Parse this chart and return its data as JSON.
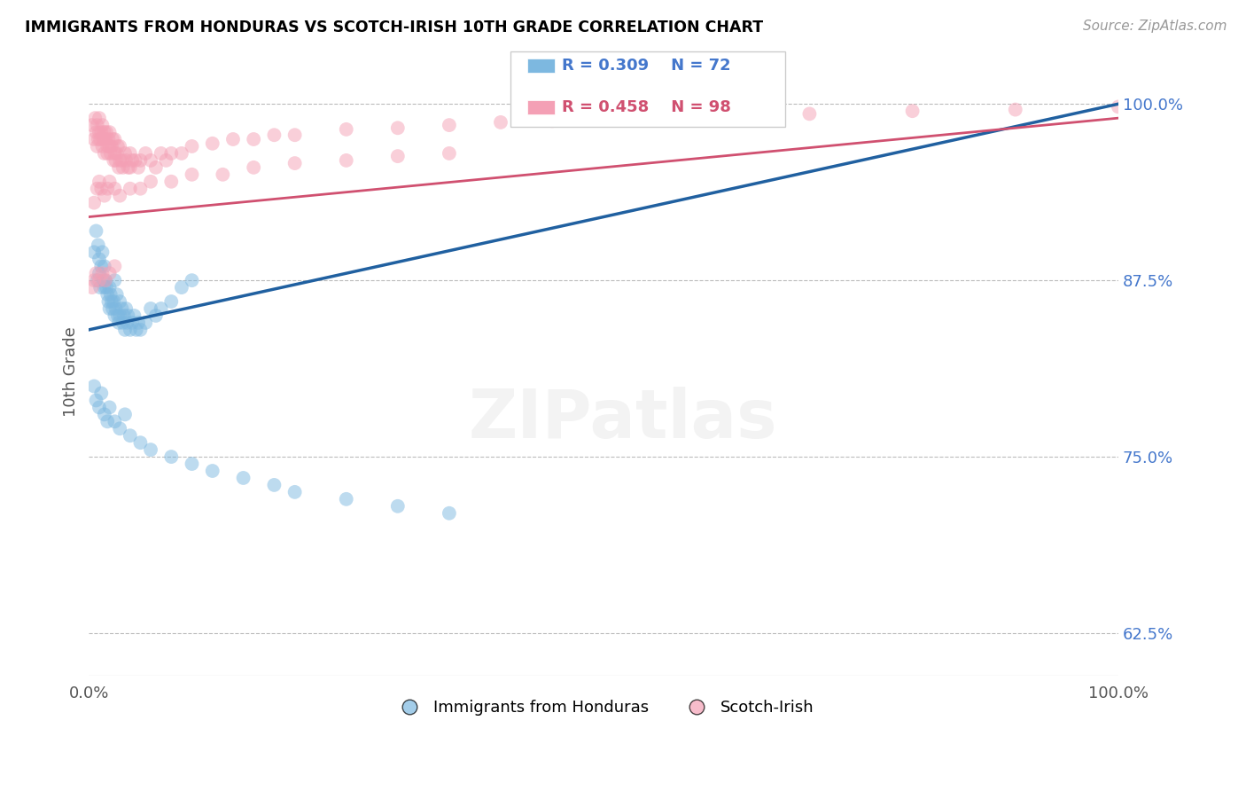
{
  "title": "IMMIGRANTS FROM HONDURAS VS SCOTCH-IRISH 10TH GRADE CORRELATION CHART",
  "source": "Source: ZipAtlas.com",
  "ylabel": "10th Grade",
  "ytick_labels": [
    "62.5%",
    "75.0%",
    "87.5%",
    "100.0%"
  ],
  "ytick_values": [
    0.625,
    0.75,
    0.875,
    1.0
  ],
  "legend_blue_label": "Immigrants from Honduras",
  "legend_pink_label": "Scotch-Irish",
  "R_blue": 0.309,
  "N_blue": 72,
  "R_pink": 0.458,
  "N_pink": 98,
  "blue_color": "#7db8e0",
  "pink_color": "#f4a0b5",
  "blue_line_color": "#2060a0",
  "pink_line_color": "#d05070",
  "xlim": [
    0.0,
    1.0
  ],
  "ylim": [
    0.595,
    1.025
  ],
  "blue_line_x0": 0.0,
  "blue_line_y0": 0.84,
  "blue_line_x1": 1.0,
  "blue_line_y1": 1.0,
  "pink_line_x0": 0.0,
  "pink_line_y0": 0.92,
  "pink_line_x1": 1.0,
  "pink_line_y1": 0.99,
  "blue_scatter_x": [
    0.005,
    0.007,
    0.008,
    0.009,
    0.01,
    0.01,
    0.011,
    0.012,
    0.013,
    0.014,
    0.015,
    0.015,
    0.016,
    0.017,
    0.018,
    0.019,
    0.02,
    0.02,
    0.021,
    0.022,
    0.023,
    0.024,
    0.025,
    0.025,
    0.026,
    0.027,
    0.028,
    0.029,
    0.03,
    0.03,
    0.032,
    0.033,
    0.034,
    0.035,
    0.036,
    0.037,
    0.038,
    0.04,
    0.042,
    0.044,
    0.046,
    0.048,
    0.05,
    0.055,
    0.06,
    0.065,
    0.07,
    0.08,
    0.09,
    0.1,
    0.005,
    0.007,
    0.01,
    0.012,
    0.015,
    0.018,
    0.02,
    0.025,
    0.03,
    0.035,
    0.04,
    0.05,
    0.06,
    0.08,
    0.1,
    0.12,
    0.15,
    0.18,
    0.2,
    0.25,
    0.3,
    0.35
  ],
  "blue_scatter_y": [
    0.895,
    0.91,
    0.875,
    0.9,
    0.88,
    0.89,
    0.87,
    0.885,
    0.895,
    0.875,
    0.87,
    0.885,
    0.875,
    0.87,
    0.865,
    0.86,
    0.87,
    0.855,
    0.865,
    0.86,
    0.855,
    0.86,
    0.85,
    0.875,
    0.855,
    0.865,
    0.85,
    0.845,
    0.85,
    0.86,
    0.855,
    0.845,
    0.85,
    0.84,
    0.855,
    0.845,
    0.85,
    0.84,
    0.845,
    0.85,
    0.84,
    0.845,
    0.84,
    0.845,
    0.855,
    0.85,
    0.855,
    0.86,
    0.87,
    0.875,
    0.8,
    0.79,
    0.785,
    0.795,
    0.78,
    0.775,
    0.785,
    0.775,
    0.77,
    0.78,
    0.765,
    0.76,
    0.755,
    0.75,
    0.745,
    0.74,
    0.735,
    0.73,
    0.725,
    0.72,
    0.715,
    0.71
  ],
  "pink_scatter_x": [
    0.003,
    0.005,
    0.006,
    0.007,
    0.008,
    0.008,
    0.009,
    0.01,
    0.01,
    0.011,
    0.012,
    0.013,
    0.013,
    0.014,
    0.015,
    0.015,
    0.016,
    0.017,
    0.018,
    0.018,
    0.019,
    0.02,
    0.02,
    0.021,
    0.022,
    0.023,
    0.024,
    0.025,
    0.025,
    0.026,
    0.027,
    0.028,
    0.029,
    0.03,
    0.03,
    0.032,
    0.033,
    0.035,
    0.036,
    0.038,
    0.04,
    0.04,
    0.042,
    0.045,
    0.048,
    0.05,
    0.055,
    0.06,
    0.065,
    0.07,
    0.075,
    0.08,
    0.09,
    0.1,
    0.12,
    0.14,
    0.16,
    0.18,
    0.2,
    0.25,
    0.3,
    0.35,
    0.4,
    0.45,
    0.5,
    0.6,
    0.7,
    0.8,
    0.9,
    1.0,
    0.005,
    0.008,
    0.01,
    0.012,
    0.015,
    0.018,
    0.02,
    0.025,
    0.03,
    0.04,
    0.05,
    0.06,
    0.08,
    0.1,
    0.13,
    0.16,
    0.2,
    0.25,
    0.3,
    0.35,
    0.003,
    0.005,
    0.007,
    0.01,
    0.013,
    0.016,
    0.02,
    0.025
  ],
  "pink_scatter_y": [
    0.985,
    0.975,
    0.99,
    0.98,
    0.985,
    0.97,
    0.975,
    0.98,
    0.99,
    0.975,
    0.98,
    0.985,
    0.97,
    0.975,
    0.98,
    0.965,
    0.975,
    0.98,
    0.97,
    0.965,
    0.975,
    0.97,
    0.98,
    0.965,
    0.97,
    0.975,
    0.96,
    0.965,
    0.975,
    0.96,
    0.965,
    0.97,
    0.955,
    0.96,
    0.97,
    0.96,
    0.955,
    0.965,
    0.96,
    0.955,
    0.965,
    0.955,
    0.96,
    0.96,
    0.955,
    0.96,
    0.965,
    0.96,
    0.955,
    0.965,
    0.96,
    0.965,
    0.965,
    0.97,
    0.972,
    0.975,
    0.975,
    0.978,
    0.978,
    0.982,
    0.983,
    0.985,
    0.987,
    0.988,
    0.99,
    0.992,
    0.993,
    0.995,
    0.996,
    0.998,
    0.93,
    0.94,
    0.945,
    0.94,
    0.935,
    0.94,
    0.945,
    0.94,
    0.935,
    0.94,
    0.94,
    0.945,
    0.945,
    0.95,
    0.95,
    0.955,
    0.958,
    0.96,
    0.963,
    0.965,
    0.87,
    0.875,
    0.88,
    0.875,
    0.88,
    0.875,
    0.88,
    0.885
  ]
}
